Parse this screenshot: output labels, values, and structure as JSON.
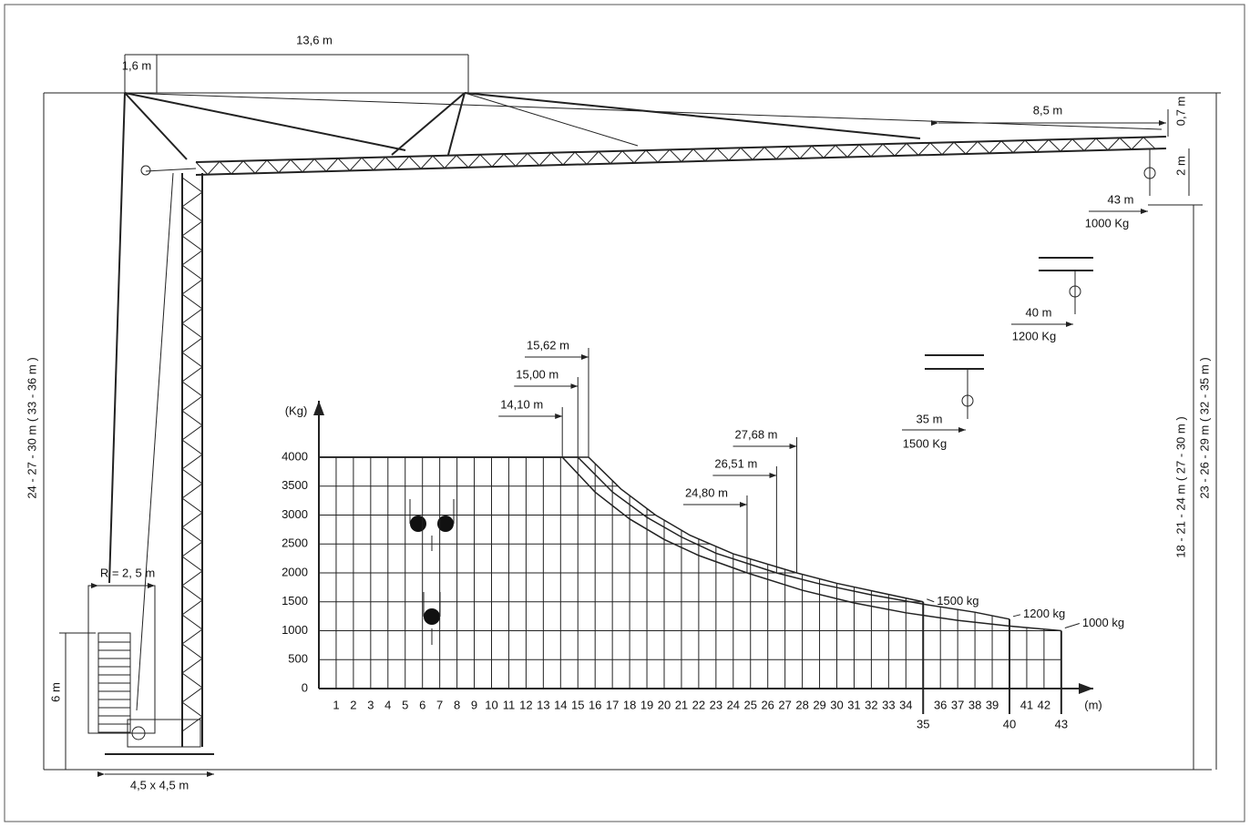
{
  "labels": {
    "counter_jib": "1,6 m",
    "jib_front": "13,6 m",
    "jib_tip": "8,5 m",
    "tip_height": "0,7 m",
    "hook_height": "2 m",
    "radius_43": "43 m",
    "load_43": "1000 Kg",
    "radius_40": "40 m",
    "load_40": "1200 Kg",
    "radius_35": "35 m",
    "load_35": "1500 Kg",
    "height_left": "24 - 27 - 30 m ( 33 - 36 m )",
    "height_right_inner": "18 - 21 - 24 m ( 27 - 30 m )",
    "height_right_outer": "23 - 26 - 29 m ( 32 - 35 m )",
    "ballast_height": "6 m",
    "ballast_radius": "R = 2, 5 m",
    "base": "4,5 x 4,5 m"
  },
  "chart_data": {
    "type": "line",
    "y_unit": "(Kg)",
    "x_unit": "(m)",
    "xlim": [
      0,
      44
    ],
    "ylim": [
      0,
      4300
    ],
    "xticks": [
      1,
      2,
      3,
      4,
      5,
      6,
      7,
      8,
      9,
      10,
      11,
      12,
      13,
      14,
      15,
      16,
      17,
      18,
      19,
      20,
      21,
      22,
      23,
      24,
      25,
      26,
      27,
      28,
      29,
      30,
      31,
      32,
      33,
      34,
      35,
      36,
      37,
      38,
      39,
      40,
      41,
      42,
      43
    ],
    "yticks": [
      0,
      500,
      1000,
      1500,
      2000,
      2500,
      3000,
      3500,
      4000
    ],
    "series": [
      {
        "name": "1500 kg",
        "color": "#222222",
        "x": [
          0,
          15.62,
          17.5,
          19.5,
          21.5,
          24,
          27.68,
          30,
          32.5,
          35
        ],
        "values": [
          4000,
          4000,
          3450,
          3000,
          2650,
          2330,
          2000,
          1820,
          1660,
          1500
        ]
      },
      {
        "name": "1200 kg",
        "color": "#222222",
        "x": [
          0,
          15,
          17,
          19,
          21,
          23,
          26.51,
          29,
          32,
          35,
          38,
          40
        ],
        "values": [
          4000,
          4000,
          3400,
          2960,
          2620,
          2340,
          2000,
          1810,
          1620,
          1460,
          1320,
          1200
        ]
      },
      {
        "name": "1000 kg",
        "color": "#222222",
        "x": [
          0,
          14.1,
          16,
          18,
          20,
          22,
          24.8,
          28,
          31,
          34,
          37,
          40,
          43
        ],
        "values": [
          4000,
          4000,
          3397,
          2932,
          2578,
          2301,
          2000,
          1700,
          1480,
          1310,
          1180,
          1080,
          1000
        ]
      }
    ],
    "radius_marks": [
      {
        "value": 14.1,
        "label": "14,10 m"
      },
      {
        "value": 15,
        "label": "15,00 m"
      },
      {
        "value": 15.62,
        "label": "15,62 m"
      },
      {
        "value": 24.8,
        "label": "24,80 m"
      },
      {
        "value": 26.51,
        "label": "26,51 m"
      },
      {
        "value": 27.68,
        "label": "27,68 m"
      }
    ]
  }
}
